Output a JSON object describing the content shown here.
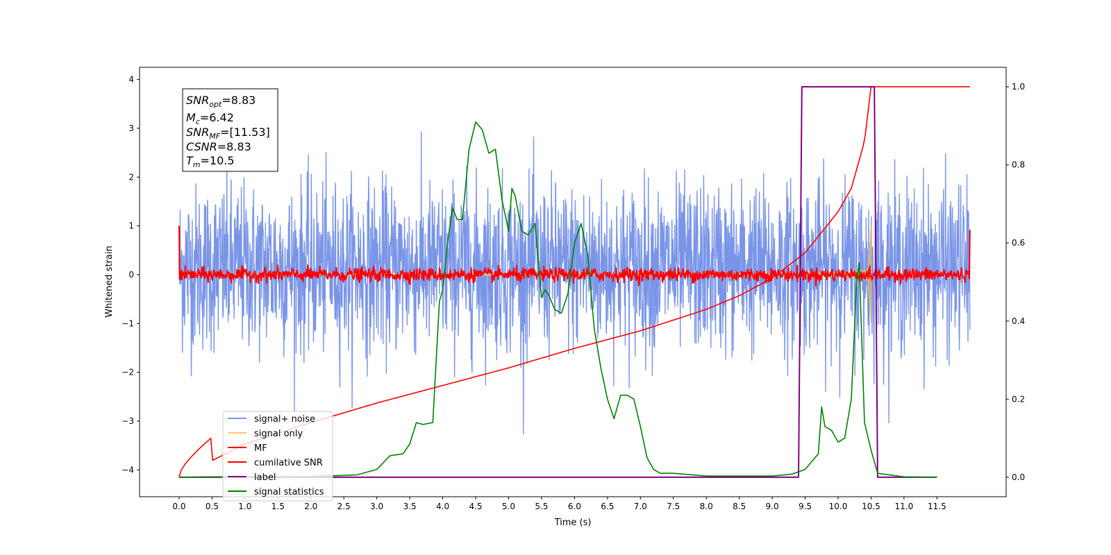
{
  "chart_data": {
    "type": "line",
    "xlabel": "Time (s)",
    "ylabel": "Whitened strain",
    "xlim": [
      -0.6,
      12.55
    ],
    "ylim": [
      -4.55,
      4.25
    ],
    "ylim_right": [
      -0.05,
      1.05
    ],
    "x_ticks": [
      "0.0",
      "0.5",
      "1.0",
      "1.5",
      "2.0",
      "2.5",
      "3.0",
      "3.5",
      "4.0",
      "4.5",
      "5.0",
      "5.5",
      "6.0",
      "6.5",
      "7.0",
      "7.5",
      "8.0",
      "8.5",
      "9.0",
      "9.5",
      "10.0",
      "10.5",
      "11.0",
      "11.5"
    ],
    "y_ticks": [
      "4",
      "3",
      "2",
      "1",
      "0",
      "−1",
      "−2",
      "−3",
      "−4"
    ],
    "y_right_ticks": [
      "1.0",
      "0.8",
      "0.6",
      "0.4",
      "0.2",
      "0.0"
    ],
    "annotation": {
      "snr_opt": "=8.83",
      "mc": "=6.42",
      "snr_mf": "=[11.53]",
      "csnr": "=8.83",
      "tm": "=10.5"
    },
    "legend": {
      "placement": "lower-left",
      "entries": [
        "signal+ noise",
        "signal only",
        "MF",
        "cumilative SNR",
        "label",
        "signal statistics"
      ]
    },
    "colors": {
      "noise": "#7a95e8",
      "signal": "#ffc966",
      "mf": "#ff0000",
      "csnr": "#ff0000",
      "label": "#800080",
      "stats": "#008000"
    },
    "series": [
      {
        "name": "signal+ noise",
        "axis": "left",
        "x_range": [
          0,
          12
        ],
        "amplitude_range": [
          -4.1,
          3.85
        ]
      },
      {
        "name": "signal only",
        "axis": "left",
        "x_range": [
          0,
          12
        ],
        "merger_time": 10.5,
        "peak_amplitude": 1.0
      },
      {
        "name": "MF",
        "axis": "left",
        "x_range": [
          0,
          12
        ],
        "baseline": 0.0,
        "start_value": 1.0,
        "end_value": 0.92
      },
      {
        "name": "cumilative SNR",
        "axis": "right",
        "x": [
          0,
          1,
          2,
          3,
          4,
          5,
          6,
          7,
          8,
          8.5,
          9,
          9.5,
          10,
          10.2,
          10.4,
          10.5,
          11,
          12
        ],
        "values": [
          0,
          0.085,
          0.14,
          0.19,
          0.235,
          0.28,
          0.33,
          0.375,
          0.43,
          0.465,
          0.51,
          0.575,
          0.68,
          0.74,
          0.86,
          1.0,
          1.0,
          1.0
        ]
      },
      {
        "name": "label",
        "axis": "right",
        "x": [
          0,
          9.4,
          9.45,
          10.55,
          10.6,
          11.5
        ],
        "values": [
          0,
          0,
          1,
          1,
          0,
          0
        ]
      },
      {
        "name": "signal statistics",
        "axis": "right",
        "x": [
          0.0,
          0.5,
          1.0,
          1.5,
          2.0,
          2.4,
          2.7,
          3.0,
          3.2,
          3.4,
          3.5,
          3.6,
          3.7,
          3.85,
          3.95,
          4.0,
          4.08,
          4.15,
          4.22,
          4.3,
          4.4,
          4.5,
          4.6,
          4.7,
          4.8,
          4.9,
          5.0,
          5.05,
          5.1,
          5.2,
          5.3,
          5.4,
          5.5,
          5.55,
          5.6,
          5.7,
          5.8,
          5.9,
          6.0,
          6.1,
          6.2,
          6.3,
          6.4,
          6.5,
          6.6,
          6.7,
          6.8,
          6.9,
          7.0,
          7.1,
          7.2,
          7.3,
          7.5,
          8.0,
          9.0,
          9.3,
          9.5,
          9.6,
          9.7,
          9.75,
          9.8,
          9.9,
          10.0,
          10.1,
          10.2,
          10.28,
          10.32,
          10.4,
          10.5,
          10.6,
          11.0,
          11.5
        ],
        "values": [
          0,
          0.001,
          0.001,
          0.001,
          0.002,
          0.004,
          0.006,
          0.02,
          0.055,
          0.06,
          0.085,
          0.14,
          0.135,
          0.14,
          0.45,
          0.48,
          0.61,
          0.69,
          0.66,
          0.66,
          0.84,
          0.91,
          0.89,
          0.83,
          0.84,
          0.71,
          0.63,
          0.74,
          0.72,
          0.63,
          0.62,
          0.65,
          0.46,
          0.48,
          0.47,
          0.43,
          0.42,
          0.47,
          0.6,
          0.65,
          0.57,
          0.38,
          0.28,
          0.2,
          0.15,
          0.21,
          0.21,
          0.2,
          0.13,
          0.05,
          0.02,
          0.01,
          0.01,
          0.003,
          0.003,
          0.008,
          0.02,
          0.04,
          0.06,
          0.18,
          0.13,
          0.12,
          0.09,
          0.1,
          0.2,
          0.5,
          0.55,
          0.14,
          0.07,
          0.01,
          0.001,
          0.0
        ]
      }
    ]
  }
}
